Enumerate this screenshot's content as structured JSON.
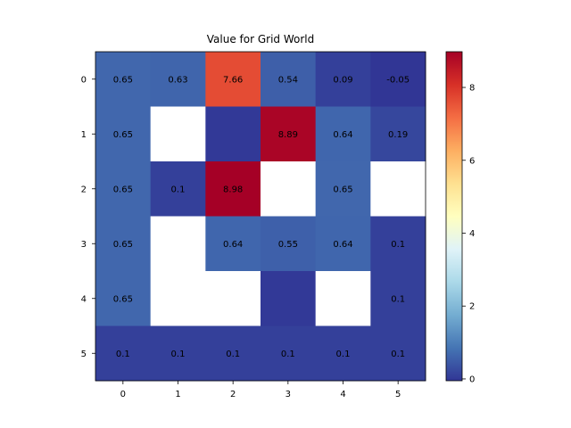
{
  "chart_data": {
    "type": "heatmap",
    "title": "Value for Grid World",
    "x_ticks": [
      "0",
      "1",
      "2",
      "3",
      "4",
      "5"
    ],
    "y_ticks": [
      "0",
      "1",
      "2",
      "3",
      "4",
      "5"
    ],
    "colorbar": {
      "colormap": "RdYlBu_r",
      "vmin": -0.05,
      "vmax": 8.98,
      "ticks": [
        0,
        2,
        4,
        6,
        8
      ],
      "tick_labels": [
        "0",
        "2",
        "4",
        "6",
        "8"
      ]
    },
    "blank_cell_color": "#ffffff",
    "grid": false,
    "rows": [
      {
        "values": [
          0.65,
          0.63,
          7.66,
          0.54,
          0.09,
          -0.05
        ],
        "labels": [
          "0.65",
          "0.63",
          "7.66",
          "0.54",
          "0.09",
          "-0.05"
        ]
      },
      {
        "values": [
          0.65,
          null,
          0.0,
          8.89,
          0.64,
          0.19
        ],
        "labels": [
          "0.65",
          "",
          "",
          "8.89",
          "0.64",
          "0.19"
        ]
      },
      {
        "values": [
          0.65,
          0.1,
          8.98,
          null,
          0.65,
          null
        ],
        "labels": [
          "0.65",
          "0.1",
          "8.98",
          "",
          "0.65",
          ""
        ]
      },
      {
        "values": [
          0.65,
          null,
          0.64,
          0.55,
          0.64,
          0.1
        ],
        "labels": [
          "0.65",
          "",
          "0.64",
          "0.55",
          "0.64",
          "0.1"
        ]
      },
      {
        "values": [
          0.65,
          null,
          null,
          0.0,
          null,
          0.1
        ],
        "labels": [
          "0.65",
          "",
          "",
          "",
          "",
          "0.1"
        ]
      },
      {
        "values": [
          0.1,
          0.1,
          0.1,
          0.1,
          0.1,
          0.1
        ],
        "labels": [
          "0.1",
          "0.1",
          "0.1",
          "0.1",
          "0.1",
          "0.1"
        ]
      }
    ]
  }
}
